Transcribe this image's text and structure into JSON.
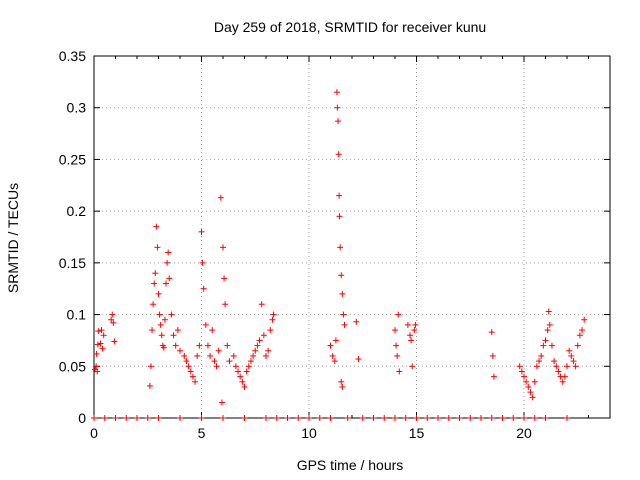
{
  "chart_data": {
    "type": "scatter",
    "title": "Day 259 of 2018, SRMTID for receiver kunu",
    "xlabel": "GPS time / hours",
    "ylabel": "SRMTID / TECUs",
    "xlim": [
      0,
      24
    ],
    "ylim": [
      0,
      0.35
    ],
    "xticks": [
      0,
      5,
      10,
      15,
      20
    ],
    "yticks": [
      0,
      0.05,
      0.1,
      0.15,
      0.2,
      0.25,
      0.3,
      0.35
    ],
    "ytick_labels": [
      "0",
      "0.05",
      "0.1",
      "0.15",
      "0.2",
      "0.25",
      "0.3",
      "0.35"
    ],
    "grid": true,
    "marker": "+",
    "colors": {
      "series": "#ff0000",
      "grid": "#a0a0a0",
      "axis": "#000000"
    },
    "series": [
      {
        "name": "SRMTID",
        "points": [
          [
            0.05,
            0.047
          ],
          [
            0.1,
            0.05
          ],
          [
            0.12,
            0.062
          ],
          [
            0.15,
            0.045
          ],
          [
            0.18,
            0.071
          ],
          [
            0.2,
            0.084
          ],
          [
            0.3,
            0.072
          ],
          [
            0.35,
            0.085
          ],
          [
            0.4,
            0.067
          ],
          [
            0.45,
            0.08
          ],
          [
            0.8,
            0.095
          ],
          [
            0.85,
            0.1
          ],
          [
            0.9,
            0.092
          ],
          [
            0.95,
            0.074
          ],
          [
            2.6,
            0.031
          ],
          [
            2.65,
            0.05
          ],
          [
            2.7,
            0.085
          ],
          [
            2.75,
            0.11
          ],
          [
            2.8,
            0.13
          ],
          [
            2.85,
            0.14
          ],
          [
            2.9,
            0.185
          ],
          [
            2.95,
            0.165
          ],
          [
            3.0,
            0.12
          ],
          [
            3.05,
            0.1
          ],
          [
            3.1,
            0.09
          ],
          [
            3.15,
            0.08
          ],
          [
            3.2,
            0.07
          ],
          [
            3.25,
            0.068
          ],
          [
            3.3,
            0.095
          ],
          [
            3.35,
            0.13
          ],
          [
            3.4,
            0.15
          ],
          [
            3.45,
            0.16
          ],
          [
            3.5,
            0.135
          ],
          [
            3.6,
            0.1
          ],
          [
            3.7,
            0.08
          ],
          [
            3.8,
            0.07
          ],
          [
            3.9,
            0.085
          ],
          [
            4.0,
            0.065
          ],
          [
            4.2,
            0.06
          ],
          [
            4.3,
            0.055
          ],
          [
            4.4,
            0.05
          ],
          [
            4.5,
            0.045
          ],
          [
            4.6,
            0.04
          ],
          [
            4.7,
            0.035
          ],
          [
            4.8,
            0.06
          ],
          [
            4.9,
            0.07
          ],
          [
            5.0,
            0.18
          ],
          [
            5.05,
            0.15
          ],
          [
            5.1,
            0.125
          ],
          [
            5.2,
            0.09
          ],
          [
            5.3,
            0.07
          ],
          [
            5.4,
            0.06
          ],
          [
            5.5,
            0.085
          ],
          [
            5.6,
            0.055
          ],
          [
            5.7,
            0.05
          ],
          [
            5.8,
            0.065
          ],
          [
            5.9,
            0.213
          ],
          [
            6.0,
            0.165
          ],
          [
            6.05,
            0.135
          ],
          [
            6.1,
            0.11
          ],
          [
            6.2,
            0.07
          ],
          [
            6.3,
            0.055
          ],
          [
            5.95,
            0.015
          ],
          [
            6.5,
            0.06
          ],
          [
            6.6,
            0.05
          ],
          [
            6.7,
            0.045
          ],
          [
            6.8,
            0.04
          ],
          [
            6.9,
            0.035
          ],
          [
            7.0,
            0.03
          ],
          [
            7.1,
            0.045
          ],
          [
            7.2,
            0.05
          ],
          [
            7.3,
            0.055
          ],
          [
            7.4,
            0.06
          ],
          [
            7.5,
            0.065
          ],
          [
            7.6,
            0.07
          ],
          [
            7.7,
            0.075
          ],
          [
            7.8,
            0.11
          ],
          [
            7.9,
            0.08
          ],
          [
            8.0,
            0.06
          ],
          [
            8.1,
            0.065
          ],
          [
            8.2,
            0.085
          ],
          [
            8.3,
            0.095
          ],
          [
            8.35,
            0.1
          ],
          [
            11.0,
            0.07
          ],
          [
            11.1,
            0.06
          ],
          [
            11.2,
            0.055
          ],
          [
            11.25,
            0.075
          ],
          [
            11.3,
            0.315
          ],
          [
            11.32,
            0.3
          ],
          [
            11.35,
            0.287
          ],
          [
            11.38,
            0.255
          ],
          [
            11.4,
            0.215
          ],
          [
            11.42,
            0.195
          ],
          [
            11.45,
            0.165
          ],
          [
            11.5,
            0.138
          ],
          [
            11.55,
            0.12
          ],
          [
            11.6,
            0.1
          ],
          [
            11.65,
            0.09
          ],
          [
            11.5,
            0.035
          ],
          [
            11.55,
            0.03
          ],
          [
            12.2,
            0.093
          ],
          [
            12.3,
            0.057
          ],
          [
            14.0,
            0.085
          ],
          [
            14.05,
            0.07
          ],
          [
            14.1,
            0.06
          ],
          [
            14.15,
            0.1
          ],
          [
            14.2,
            0.045
          ],
          [
            14.6,
            0.09
          ],
          [
            14.7,
            0.08
          ],
          [
            14.75,
            0.075
          ],
          [
            14.8,
            0.05
          ],
          [
            14.9,
            0.085
          ],
          [
            14.95,
            0.09
          ],
          [
            18.5,
            0.083
          ],
          [
            18.55,
            0.06
          ],
          [
            18.6,
            0.04
          ],
          [
            19.8,
            0.05
          ],
          [
            19.9,
            0.045
          ],
          [
            20.0,
            0.04
          ],
          [
            20.1,
            0.035
          ],
          [
            20.2,
            0.03
          ],
          [
            20.3,
            0.025
          ],
          [
            20.4,
            0.02
          ],
          [
            20.5,
            0.035
          ],
          [
            20.6,
            0.05
          ],
          [
            20.7,
            0.055
          ],
          [
            20.8,
            0.06
          ],
          [
            20.9,
            0.07
          ],
          [
            21.0,
            0.075
          ],
          [
            21.1,
            0.085
          ],
          [
            21.15,
            0.103
          ],
          [
            21.2,
            0.09
          ],
          [
            21.3,
            0.07
          ],
          [
            21.4,
            0.055
          ],
          [
            21.5,
            0.05
          ],
          [
            21.6,
            0.045
          ],
          [
            21.7,
            0.04
          ],
          [
            21.8,
            0.035
          ],
          [
            21.9,
            0.04
          ],
          [
            22.0,
            0.05
          ],
          [
            22.1,
            0.065
          ],
          [
            22.2,
            0.06
          ],
          [
            22.3,
            0.055
          ],
          [
            22.4,
            0.05
          ],
          [
            22.5,
            0.07
          ],
          [
            22.6,
            0.08
          ],
          [
            22.7,
            0.085
          ],
          [
            22.8,
            0.095
          ],
          [
            0.0,
            0
          ],
          [
            0.5,
            0
          ],
          [
            1.0,
            0
          ],
          [
            1.5,
            0
          ],
          [
            2.0,
            0
          ],
          [
            2.5,
            0
          ],
          [
            3.0,
            0
          ],
          [
            4.0,
            0
          ],
          [
            5.0,
            0
          ],
          [
            6.0,
            0
          ],
          [
            7.0,
            0
          ],
          [
            8.0,
            0
          ],
          [
            8.5,
            0
          ],
          [
            9.0,
            0
          ],
          [
            9.5,
            0
          ],
          [
            10.0,
            0
          ],
          [
            10.5,
            0
          ],
          [
            11.0,
            0
          ],
          [
            11.8,
            0
          ],
          [
            12.5,
            0
          ],
          [
            13.0,
            0
          ],
          [
            13.5,
            0
          ],
          [
            14.0,
            0
          ],
          [
            14.5,
            0
          ],
          [
            15.0,
            0
          ],
          [
            15.5,
            0
          ],
          [
            16.0,
            0
          ],
          [
            16.5,
            0
          ],
          [
            17.0,
            0
          ],
          [
            17.5,
            0
          ],
          [
            18.0,
            0
          ],
          [
            18.5,
            0
          ],
          [
            19.0,
            0
          ],
          [
            19.5,
            0
          ],
          [
            20.0,
            0
          ],
          [
            20.5,
            0
          ],
          [
            21.0,
            0
          ],
          [
            22.0,
            0
          ]
        ]
      }
    ]
  }
}
